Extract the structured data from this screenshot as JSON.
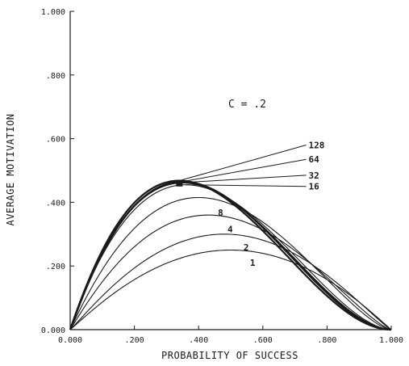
{
  "chart_data": {
    "type": "line",
    "title": "",
    "xlabel": "PROBABILITY OF SUCCESS",
    "ylabel": "AVERAGE MOTIVATION",
    "annotation": "C = .2",
    "xlim": [
      0,
      1
    ],
    "ylim": [
      0,
      1
    ],
    "grid": false,
    "x_ticks": [
      {
        "value": 0.0,
        "label": "0.000"
      },
      {
        "value": 0.2,
        "label": ".200"
      },
      {
        "value": 0.4,
        "label": ".400"
      },
      {
        "value": 0.6,
        "label": ".600"
      },
      {
        "value": 0.8,
        "label": ".800"
      },
      {
        "value": 1.0,
        "label": "1.000"
      }
    ],
    "y_ticks": [
      {
        "value": 0.0,
        "label": "0.000"
      },
      {
        "value": 0.2,
        "label": ".200"
      },
      {
        "value": 0.4,
        "label": ".400"
      },
      {
        "value": 0.6,
        "label": ".600"
      },
      {
        "value": 0.8,
        "label": ".800"
      },
      {
        "value": 1.0,
        "label": "1.000"
      }
    ],
    "series": [
      {
        "name": "1",
        "peak_x": 0.5,
        "peak_y": 0.25,
        "shape": 0.5
      },
      {
        "name": "2",
        "peak_x": 0.48,
        "peak_y": 0.3,
        "shape": 0.55
      },
      {
        "name": "4",
        "peak_x": 0.43,
        "peak_y": 0.36,
        "shape": 0.6
      },
      {
        "name": "8",
        "peak_x": 0.4,
        "peak_y": 0.415,
        "shape": 0.65
      },
      {
        "name": "16",
        "peak_x": 0.36,
        "peak_y": 0.455,
        "shape": 0.72,
        "label_y": 0.45
      },
      {
        "name": "32",
        "peak_x": 0.35,
        "peak_y": 0.462,
        "shape": 0.75,
        "label_y": 0.485
      },
      {
        "name": "64",
        "peak_x": 0.35,
        "peak_y": 0.465,
        "shape": 0.78,
        "label_y": 0.535
      },
      {
        "name": "128",
        "peak_x": 0.34,
        "peak_y": 0.468,
        "shape": 0.8,
        "label_y": 0.58
      }
    ]
  }
}
